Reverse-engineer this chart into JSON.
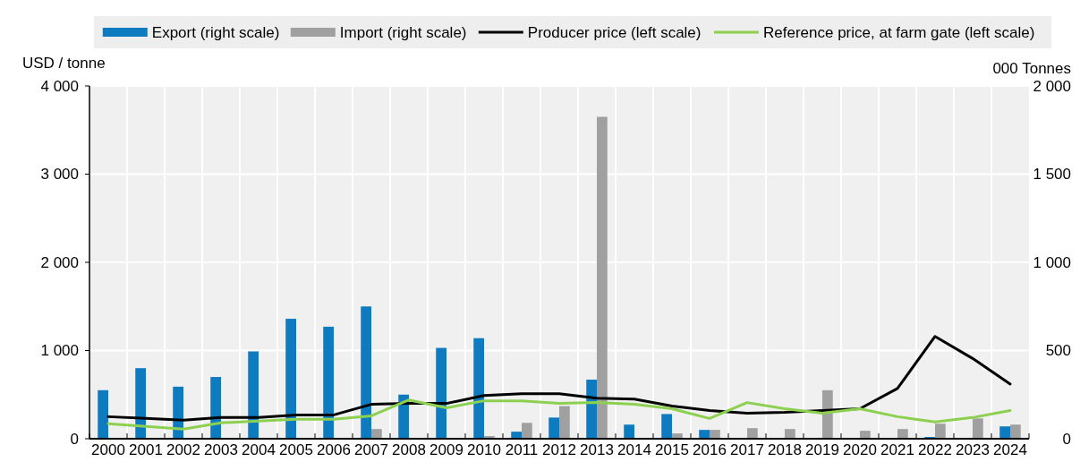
{
  "chart_data": {
    "type": "bar",
    "ylabel": "USD / tonne",
    "y2label": "000 Tonnes",
    "categories": [
      "2000",
      "2001",
      "2002",
      "2003",
      "2004",
      "2005",
      "2006",
      "2007",
      "2008",
      "2009",
      "2010",
      "2011",
      "2012",
      "2013",
      "2014",
      "2015",
      "2016",
      "2017",
      "2018",
      "2019",
      "2020",
      "2021",
      "2022",
      "2023",
      "2024"
    ],
    "series": [
      {
        "name": "Export (right scale)",
        "axis": "y2",
        "color": "#0e7bc0",
        "values": [
          275,
          400,
          295,
          350,
          495,
          680,
          635,
          750,
          250,
          515,
          570,
          40,
          120,
          335,
          80,
          140,
          50,
          null,
          null,
          null,
          null,
          null,
          10,
          null,
          70
        ]
      },
      {
        "name": "Import (right scale)",
        "axis": "y2",
        "color": "#a0a0a0",
        "values": [
          null,
          null,
          null,
          null,
          null,
          null,
          null,
          55,
          null,
          null,
          15,
          90,
          185,
          1825,
          null,
          30,
          50,
          60,
          55,
          275,
          45,
          55,
          85,
          115,
          80
        ]
      },
      {
        "name": "Producer price (left scale)",
        "type": "line",
        "color": "#000000",
        "values": [
          250,
          230,
          210,
          240,
          240,
          270,
          270,
          390,
          400,
          400,
          490,
          510,
          510,
          460,
          450,
          370,
          320,
          290,
          300,
          320,
          340,
          570,
          1160,
          910,
          620
        ]
      },
      {
        "name": "Reference price, at farm gate (left scale)",
        "type": "line",
        "color": "#8dd04f",
        "values": [
          170,
          140,
          110,
          180,
          200,
          220,
          220,
          260,
          440,
          350,
          430,
          430,
          400,
          410,
          390,
          340,
          230,
          410,
          340,
          290,
          340,
          250,
          190,
          240,
          320
        ]
      }
    ],
    "ylim": [
      0,
      4000
    ],
    "yticks": [
      0,
      {
        "value": 1000,
        "label": "1 000"
      },
      {
        "value": 2000,
        "label": "2 000"
      },
      {
        "value": 3000,
        "label": "3 000"
      },
      {
        "value": 4000,
        "label": "4 000"
      }
    ],
    "y2lim": [
      0,
      2000
    ],
    "y2ticks": [
      0,
      500,
      {
        "value": 1000,
        "label": "1 000"
      },
      {
        "value": 1500,
        "label": "1 500"
      },
      {
        "value": 2000,
        "label": "2 000"
      }
    ],
    "grid": true,
    "legend": "top"
  }
}
